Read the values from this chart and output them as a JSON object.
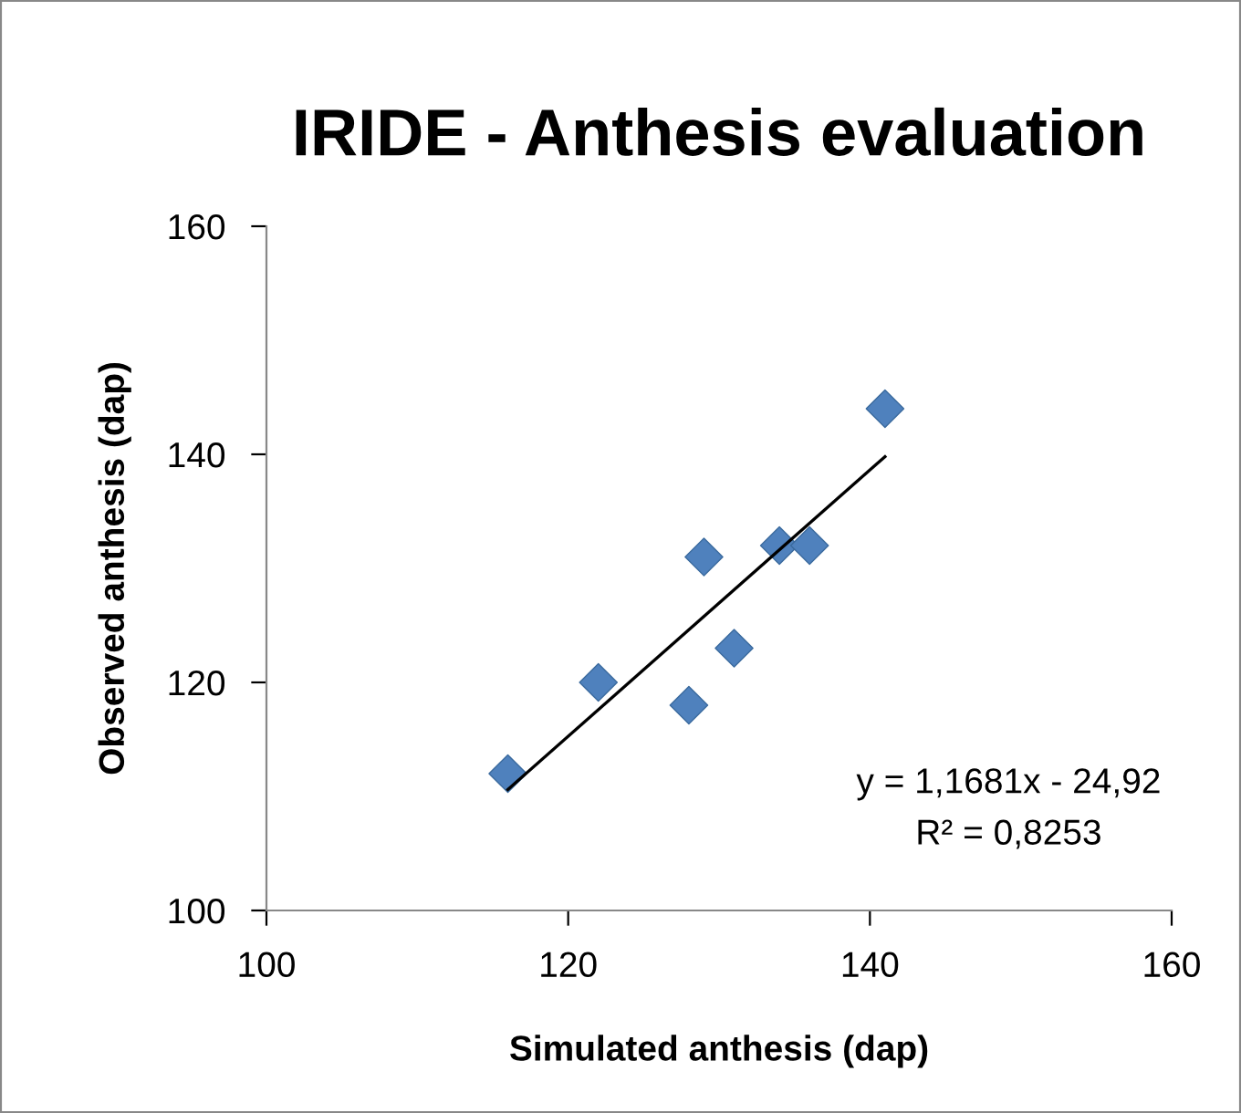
{
  "chart_data": {
    "type": "scatter",
    "title": "IRIDE - Anthesis evaluation",
    "xlabel": "Simulated anthesis (dap)",
    "ylabel": "Observed anthesis (dap)",
    "x": [
      116,
      122,
      128,
      129,
      131,
      134,
      136,
      141
    ],
    "series": [
      {
        "color": "#4f81bd",
        "marker": "diamond",
        "values": [
          112,
          120,
          118,
          131,
          123,
          132,
          132,
          144
        ]
      },
      {
        "type": "line",
        "color": "#000000",
        "marker": "none",
        "line_style": "solid",
        "x": [
          116,
          141
        ],
        "values": [
          110.6,
          139.8
        ]
      }
    ],
    "xlim": [
      100,
      160
    ],
    "ylim": [
      100,
      160
    ],
    "xticks": [
      100,
      120,
      140,
      160
    ],
    "yticks": [
      100,
      120,
      140,
      160
    ],
    "grid": false,
    "legend": false,
    "annotations": [
      "y = 1,1681x - 24,92",
      "R² = 0,8253"
    ]
  }
}
